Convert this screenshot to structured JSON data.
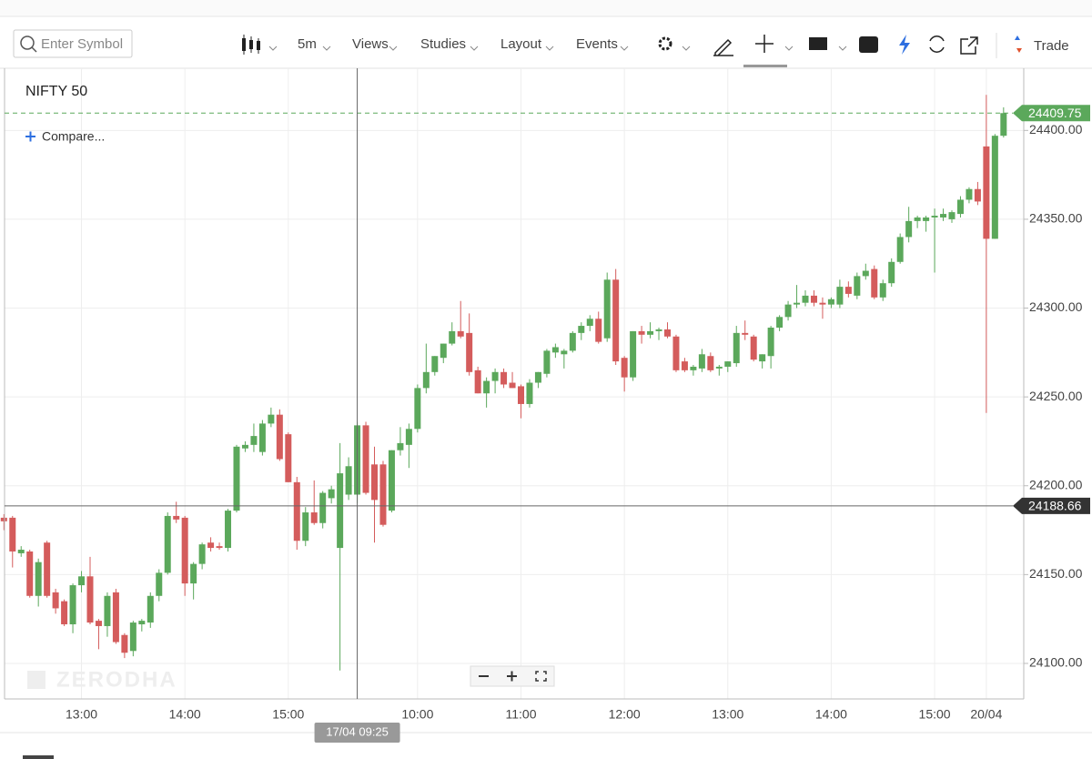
{
  "toolbar": {
    "search_placeholder": "Enter Symbol",
    "interval": "5m",
    "menus": [
      "Views",
      "Studies",
      "Layout",
      "Events"
    ],
    "trade": "Trade"
  },
  "chart_data": {
    "type": "candlestick",
    "title": "NIFTY 50",
    "compare": "Compare...",
    "watermark": "ZERODHA",
    "up_color": "#5ba85b",
    "down_color": "#d45c5c",
    "grid": true,
    "ylim": [
      24080,
      24435
    ],
    "yticks": [
      {
        "value": 24100,
        "label": "24100.00"
      },
      {
        "value": 24150,
        "label": "24150.00"
      },
      {
        "value": 24200,
        "label": "24200.00"
      },
      {
        "value": 24250,
        "label": "24250.00"
      },
      {
        "value": 24300,
        "label": "24300.00"
      },
      {
        "value": 24350,
        "label": "24350.00"
      },
      {
        "value": 24400,
        "label": "24400.00"
      }
    ],
    "last_price": 24409.75,
    "crosshair": {
      "price": 24188.66,
      "label": "17/04 09:25"
    },
    "categories": [
      null,
      null,
      null,
      null,
      null,
      null,
      null,
      null,
      null,
      "13:00",
      null,
      null,
      null,
      null,
      null,
      null,
      null,
      null,
      null,
      null,
      null,
      "14:00",
      null,
      null,
      null,
      null,
      null,
      null,
      null,
      null,
      null,
      null,
      null,
      "15:00",
      null,
      null,
      null,
      null,
      null,
      null,
      null,
      null,
      null,
      null,
      null,
      null,
      null,
      null,
      "10:00",
      null,
      null,
      null,
      null,
      null,
      null,
      null,
      null,
      null,
      null,
      null,
      "11:00",
      null,
      null,
      null,
      null,
      null,
      null,
      null,
      null,
      null,
      null,
      null,
      "12:00",
      null,
      null,
      null,
      null,
      null,
      null,
      null,
      null,
      null,
      null,
      null,
      "13:00",
      null,
      null,
      null,
      null,
      null,
      null,
      null,
      null,
      null,
      null,
      null,
      "14:00",
      null,
      null,
      null,
      null,
      null,
      null,
      null,
      null,
      null,
      null,
      null,
      "15:00",
      null,
      null,
      null,
      null,
      null,
      "20/04",
      null,
      null
    ],
    "ohlc": [
      [
        24182,
        24184,
        24175,
        24180
      ],
      [
        24182,
        24183,
        24154,
        24163
      ],
      [
        24162,
        24166,
        24160,
        24164
      ],
      [
        24163,
        24164,
        24137,
        24138
      ],
      [
        24138,
        24159,
        24132,
        24157
      ],
      [
        24168,
        24169,
        24137,
        24138
      ],
      [
        24140,
        24142,
        24128,
        24131
      ],
      [
        24135,
        24136,
        24121,
        24122
      ],
      [
        24122,
        24145,
        24117,
        24144
      ],
      [
        24144,
        24152,
        24140,
        24149
      ],
      [
        24149,
        24160,
        24122,
        24123
      ],
      [
        24124,
        24125,
        24108,
        24121
      ],
      [
        24121,
        24140,
        24115,
        24138
      ],
      [
        24140,
        24142,
        24111,
        24112
      ],
      [
        24116,
        24117,
        24103,
        24106
      ],
      [
        24107,
        24124,
        24104,
        24123
      ],
      [
        24122,
        24125,
        24118,
        24124
      ],
      [
        24123,
        24140,
        24120,
        24138
      ],
      [
        24138,
        24153,
        24135,
        24151
      ],
      [
        24151,
        24185,
        24150,
        24183
      ],
      [
        24183,
        24191,
        24179,
        24181
      ],
      [
        24182,
        24183,
        24138,
        24145
      ],
      [
        24145,
        24157,
        24136,
        24156
      ],
      [
        24156,
        24168,
        24153,
        24167
      ],
      [
        24168,
        24171,
        24163,
        24165
      ],
      [
        24166,
        24168,
        24164,
        24165
      ],
      [
        24165,
        24187,
        24163,
        24186
      ],
      [
        24186,
        24223,
        24185,
        24222
      ],
      [
        24221,
        24225,
        24219,
        24223
      ],
      [
        24223,
        24235,
        24219,
        24228
      ],
      [
        24219,
        24237,
        24217,
        24235
      ],
      [
        24235,
        24244,
        24233,
        24240
      ],
      [
        24240,
        24243,
        24214,
        24215
      ],
      [
        24229,
        24230,
        24202,
        24202
      ],
      [
        24202,
        24205,
        24164,
        24169
      ],
      [
        24169,
        24188,
        24166,
        24185
      ],
      [
        24185,
        24203,
        24178,
        24179
      ],
      [
        24179,
        24197,
        24176,
        24196
      ],
      [
        24193,
        24200,
        24190,
        24198
      ],
      [
        24165,
        24224,
        24096,
        24207
      ],
      [
        24195,
        24216,
        24192,
        24211
      ],
      [
        24195,
        24236,
        24190,
        24234
      ],
      [
        24234,
        24236,
        24195,
        24196
      ],
      [
        24212,
        24222,
        24168,
        24192
      ],
      [
        24212,
        24214,
        24177,
        24178
      ],
      [
        24186,
        24220,
        24185,
        24220
      ],
      [
        24220,
        24233,
        24217,
        24224
      ],
      [
        24223,
        24235,
        24210,
        24232
      ],
      [
        24232,
        24257,
        24230,
        24255
      ],
      [
        24255,
        24280,
        24252,
        24264
      ],
      [
        24264,
        24273,
        24262,
        24273
      ],
      [
        24272,
        24280,
        24269,
        24280
      ],
      [
        24280,
        24292,
        24279,
        24287
      ],
      [
        24287,
        24304,
        24283,
        24284
      ],
      [
        24286,
        24297,
        24262,
        24264
      ],
      [
        24265,
        24267,
        24252,
        24252
      ],
      [
        24252,
        24261,
        24244,
        24259
      ],
      [
        24259,
        24266,
        24252,
        24264
      ],
      [
        24264,
        24266,
        24255,
        24257
      ],
      [
        24258,
        24264,
        24255,
        24255
      ],
      [
        24256,
        24257,
        24238,
        24246
      ],
      [
        24246,
        24260,
        24244,
        24258
      ],
      [
        24258,
        24264,
        24255,
        24264
      ],
      [
        24263,
        24277,
        24261,
        24276
      ],
      [
        24275,
        24280,
        24272,
        24278
      ],
      [
        24274,
        24277,
        24266,
        24276
      ],
      [
        24276,
        24287,
        24275,
        24286
      ],
      [
        24286,
        24292,
        24282,
        24290
      ],
      [
        24290,
        24296,
        24287,
        24294
      ],
      [
        24294,
        24298,
        24280,
        24281
      ],
      [
        24283,
        24320,
        24281,
        24316
      ],
      [
        24316,
        24322,
        24268,
        24270
      ],
      [
        24272,
        24273,
        24253,
        24261
      ],
      [
        24261,
        24287,
        24259,
        24287
      ],
      [
        24287,
        24290,
        24280,
        24285
      ],
      [
        24285,
        24292,
        24283,
        24287
      ],
      [
        24287,
        24289,
        24282,
        24288
      ],
      [
        24288,
        24292,
        24283,
        24284
      ],
      [
        24284,
        24285,
        24264,
        24265
      ],
      [
        24270,
        24272,
        24264,
        24265
      ],
      [
        24265,
        24268,
        24262,
        24267
      ],
      [
        24266,
        24277,
        24264,
        24274
      ],
      [
        24273,
        24275,
        24264,
        24265
      ],
      [
        24266,
        24268,
        24262,
        24267
      ],
      [
        24267,
        24270,
        24264,
        24270
      ],
      [
        24269,
        24290,
        24267,
        24286
      ],
      [
        24286,
        24293,
        24282,
        24285
      ],
      [
        24284,
        24285,
        24270,
        24271
      ],
      [
        24270,
        24274,
        24266,
        24274
      ],
      [
        24273,
        24290,
        24266,
        24289
      ],
      [
        24289,
        24296,
        24287,
        24295
      ],
      [
        24295,
        24304,
        24293,
        24302
      ],
      [
        24302,
        24313,
        24300,
        24303
      ],
      [
        24303,
        24310,
        24301,
        24307
      ],
      [
        24307,
        24310,
        24301,
        24303
      ],
      [
        24303,
        24306,
        24294,
        24302
      ],
      [
        24302,
        24306,
        24300,
        24305
      ],
      [
        24302,
        24316,
        24300,
        24312
      ],
      [
        24312,
        24315,
        24306,
        24308
      ],
      [
        24307,
        24320,
        24305,
        24318
      ],
      [
        24318,
        24325,
        24316,
        24321
      ],
      [
        24322,
        24324,
        24305,
        24306
      ],
      [
        24306,
        24316,
        24304,
        24314
      ],
      [
        24314,
        24328,
        24312,
        24326
      ],
      [
        24326,
        24342,
        24325,
        24340
      ],
      [
        24340,
        24357,
        24337,
        24349
      ],
      [
        24349,
        24352,
        24345,
        24351
      ],
      [
        24349,
        24352,
        24343,
        24351
      ],
      [
        24351,
        24356,
        24320,
        24352
      ],
      [
        24351,
        24356,
        24349,
        24353
      ],
      [
        24350,
        24355,
        24348,
        24354
      ],
      [
        24353,
        24363,
        24351,
        24361
      ],
      [
        24361,
        24368,
        24359,
        24367
      ],
      [
        24367,
        24371,
        24358,
        24360
      ],
      [
        24391,
        24420,
        24241,
        24339
      ],
      [
        24339,
        24398,
        24339,
        24397
      ],
      [
        24397,
        24413,
        24396,
        24409.75
      ]
    ]
  }
}
